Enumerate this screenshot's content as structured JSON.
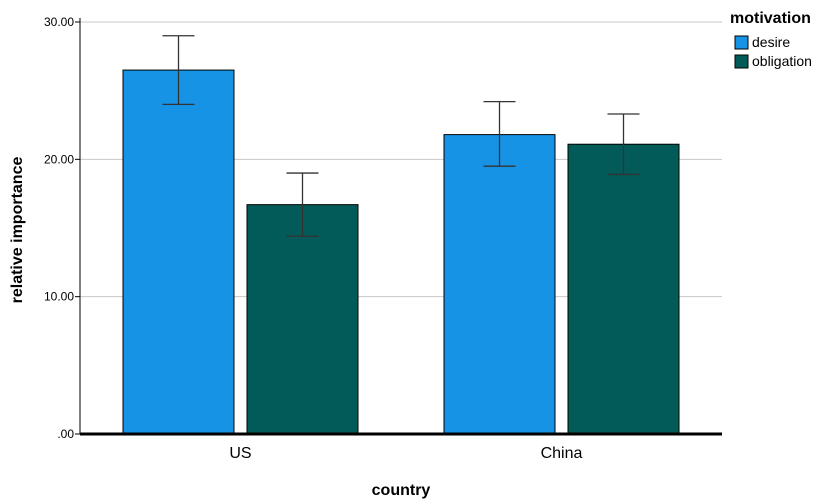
{
  "chart_data": {
    "type": "bar",
    "categories": [
      "US",
      "China"
    ],
    "series": [
      {
        "name": "desire",
        "color": "#1793e6",
        "values": [
          26.5,
          21.8
        ],
        "err_low": [
          24.0,
          19.5
        ],
        "err_high": [
          29.0,
          24.2
        ]
      },
      {
        "name": "obligation",
        "color": "#035b59",
        "values": [
          16.7,
          21.1
        ],
        "err_low": [
          14.4,
          18.9
        ],
        "err_high": [
          19.0,
          23.3
        ]
      }
    ],
    "xlabel": "country",
    "ylabel": "relative importance",
    "ylim": [
      0,
      30
    ],
    "yticks": [
      0,
      10,
      20,
      30
    ],
    "ytick_labels": [
      ".00",
      "10.00",
      "20.00",
      "30.00"
    ],
    "grid": true,
    "legend": {
      "title": "motivation",
      "position": "top-right"
    }
  }
}
